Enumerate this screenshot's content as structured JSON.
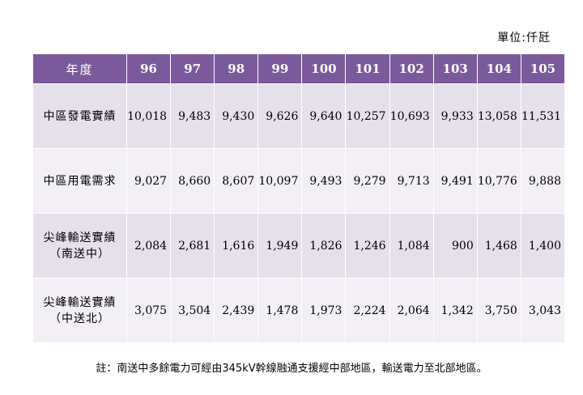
{
  "unit_label": "單位:仟瓩",
  "table": {
    "corner": "年度",
    "years": [
      "96",
      "97",
      "98",
      "99",
      "100",
      "101",
      "102",
      "103",
      "104",
      "105"
    ],
    "rows": [
      {
        "label1": "中區發電實績",
        "label2": "",
        "values": [
          "10,018",
          "9,483",
          "9,430",
          "9,626",
          "9,640",
          "10,257",
          "10,693",
          "9,933",
          "13,058",
          "11,531"
        ]
      },
      {
        "label1": "中區用電需求",
        "label2": "",
        "values": [
          "9,027",
          "8,660",
          "8,607",
          "10,097",
          "9,493",
          "9,279",
          "9,713",
          "9,491",
          "10,776",
          "9,888"
        ]
      },
      {
        "label1": "尖峰輸送實績",
        "label2": "（南送中）",
        "values": [
          "2,084",
          "2,681",
          "1,616",
          "1,949",
          "1,826",
          "1,246",
          "1,084",
          "900",
          "1,468",
          "1,400"
        ]
      },
      {
        "label1": "尖峰輸送實績",
        "label2": "（中送北）",
        "values": [
          "3,075",
          "3,504",
          "2,439",
          "1,478",
          "1,973",
          "2,224",
          "2,064",
          "1,342",
          "3,750",
          "3,043"
        ]
      }
    ]
  },
  "note": "註：南送中多餘電力可經由345kV幹線融通支援經中部地區，輸送電力至北部地區。",
  "colors": {
    "header_bg": "#7b5a9b",
    "row_odd": "#e6e0eb",
    "row_even": "#f2eff5"
  }
}
